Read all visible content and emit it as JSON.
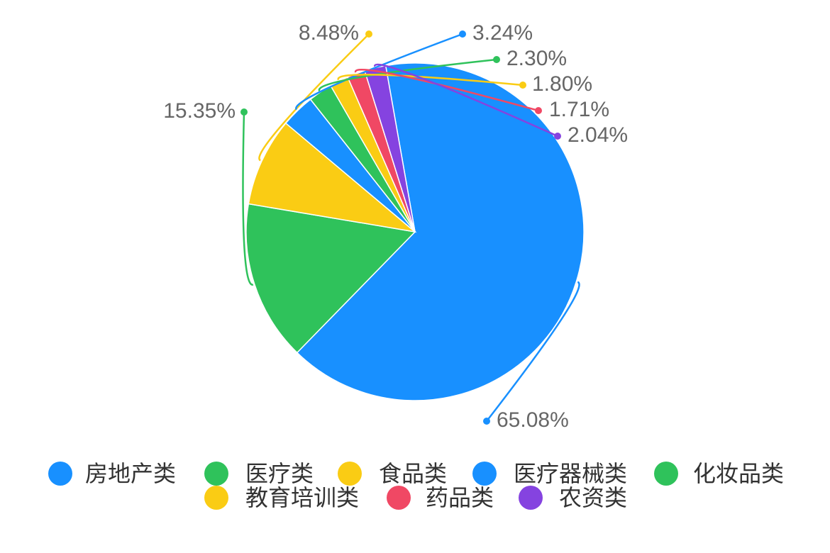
{
  "chart_data": {
    "type": "pie",
    "categories": [
      "房地产类",
      "医疗类",
      "食品类",
      "医疗器械类",
      "化妆品类",
      "教育培训类",
      "药品类",
      "农资类"
    ],
    "values": [
      65.08,
      15.35,
      8.48,
      3.24,
      2.3,
      1.8,
      1.71,
      2.04
    ],
    "labels": [
      "65.08%",
      "15.35%",
      "8.48%",
      "3.24%",
      "2.30%",
      "1.80%",
      "1.71%",
      "2.04%"
    ],
    "colors": [
      "#1890FF",
      "#2FC25B",
      "#FACC14",
      "#1890FF",
      "#2FC25B",
      "#FACC14",
      "#F04864",
      "#8543E0"
    ],
    "legend_position": "bottom",
    "start_angle_deg": 100
  }
}
